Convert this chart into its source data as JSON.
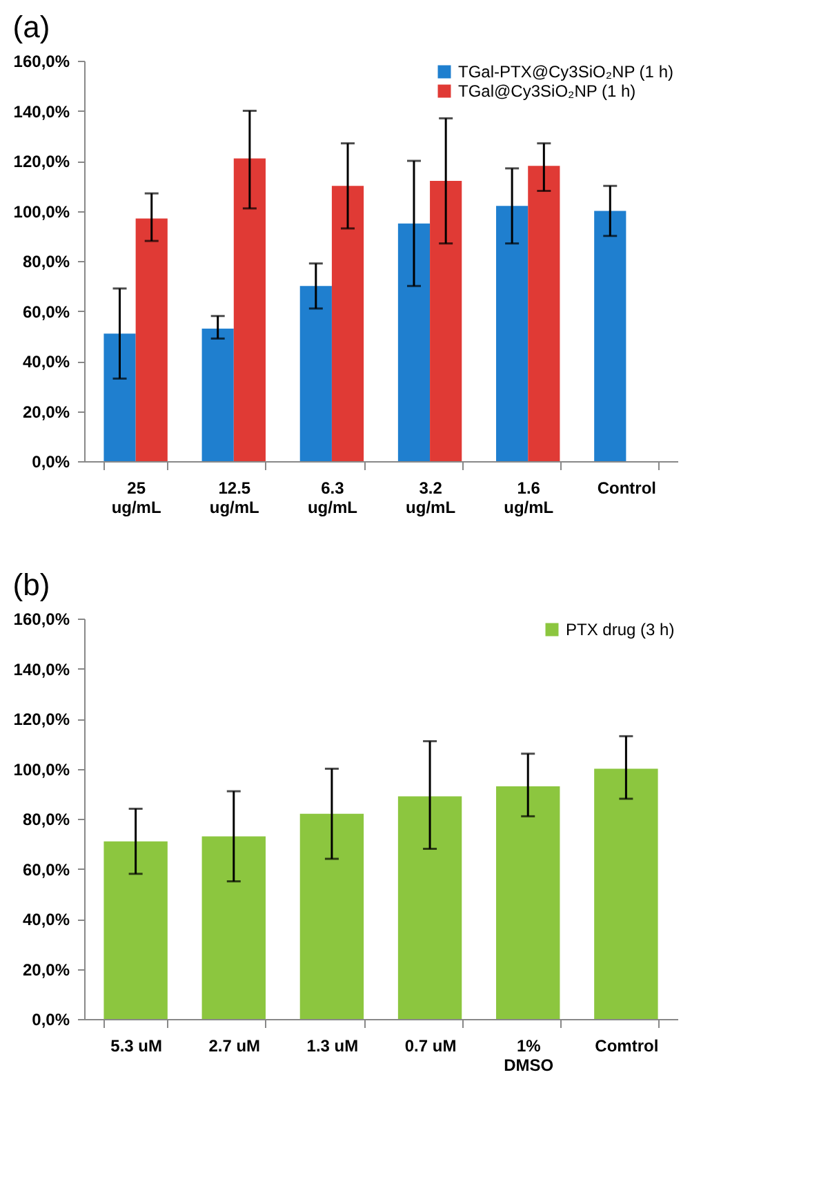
{
  "chart_data": [
    {
      "type": "bar",
      "title": "(a)",
      "categories": [
        "25\nug/mL",
        "12.5\nug/mL",
        "6.3\nug/mL",
        "3.2\nug/mL",
        "1.6\nug/mL",
        "Control"
      ],
      "series": [
        {
          "name": "TGal-PTX@Cy3SiO₂NP (1 h)",
          "color": "#1f7fcf",
          "values": [
            51,
            53,
            70,
            95,
            102,
            100
          ],
          "errors": [
            [
              33,
              69
            ],
            [
              49,
              58
            ],
            [
              61,
              79
            ],
            [
              70,
              120
            ],
            [
              87,
              117
            ],
            [
              90,
              110
            ]
          ]
        },
        {
          "name": "TGal@Cy3SiO₂NP  (1 h)",
          "color": "#e03a35",
          "values": [
            97,
            121,
            110,
            112,
            118,
            null
          ],
          "errors": [
            [
              88,
              107
            ],
            [
              101,
              140
            ],
            [
              93,
              127
            ],
            [
              87,
              137
            ],
            [
              108,
              127
            ],
            null
          ]
        }
      ],
      "ylim": [
        0,
        160
      ],
      "yticks": [
        {
          "value": 0,
          "label": "0,0%"
        },
        {
          "value": 20,
          "label": "20,0%"
        },
        {
          "value": 40,
          "label": "40,0%"
        },
        {
          "value": 60,
          "label": "60,0%"
        },
        {
          "value": 80,
          "label": "80,0%"
        },
        {
          "value": 100,
          "label": "100,0%"
        },
        {
          "value": 120,
          "label": "120,0%"
        },
        {
          "value": 140,
          "label": "140,0%"
        },
        {
          "value": 160,
          "label": "160,0%"
        }
      ],
      "legend": "top right"
    },
    {
      "type": "bar",
      "title": "(b)",
      "categories": [
        "5.3 uM",
        "2.7 uM",
        "1.3 uM",
        "0.7 uM",
        "1%\nDMSO",
        "Comtrol"
      ],
      "series": [
        {
          "name": "PTX drug (3 h)",
          "color": "#8cc63f",
          "values": [
            71,
            73,
            82,
            89,
            93,
            100
          ],
          "errors": [
            [
              58,
              84
            ],
            [
              55,
              91
            ],
            [
              64,
              100
            ],
            [
              68,
              111
            ],
            [
              81,
              106
            ],
            [
              88,
              113
            ]
          ]
        }
      ],
      "ylim": [
        0,
        160
      ],
      "yticks": [
        {
          "value": 0,
          "label": "0,0%"
        },
        {
          "value": 20,
          "label": "20,0%"
        },
        {
          "value": 40,
          "label": "40,0%"
        },
        {
          "value": 60,
          "label": "60,0%"
        },
        {
          "value": 80,
          "label": "80,0%"
        },
        {
          "value": 100,
          "label": "100,0%"
        },
        {
          "value": 120,
          "label": "120,0%"
        },
        {
          "value": 140,
          "label": "140,0%"
        },
        {
          "value": 160,
          "label": "160,0%"
        }
      ],
      "legend": "top right"
    }
  ]
}
